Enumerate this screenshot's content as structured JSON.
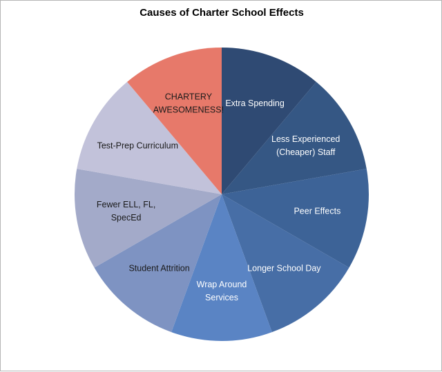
{
  "chart_data": {
    "type": "pie",
    "title": "Causes of Charter School Effects",
    "slices": [
      {
        "label": "Extra Spending",
        "value": 1,
        "color": "#2f4a73",
        "text_color": "#ffffff"
      },
      {
        "label": "Less Experienced (Cheaper) Staff",
        "value": 1,
        "color": "#355784",
        "text_color": "#ffffff"
      },
      {
        "label": "Peer Effects",
        "value": 1,
        "color": "#3d6397",
        "text_color": "#ffffff"
      },
      {
        "label": "Longer School Day",
        "value": 1,
        "color": "#476ea6",
        "text_color": "#ffffff"
      },
      {
        "label": "Wrap Around Services",
        "value": 1,
        "color": "#5a84c4",
        "text_color": "#ffffff"
      },
      {
        "label": "Student Attrition",
        "value": 1,
        "color": "#7e93c2",
        "text_color": "#1a1a1a"
      },
      {
        "label": "Fewer ELL, FL, SpecEd",
        "value": 1,
        "color": "#a3aac9",
        "text_color": "#1a1a1a"
      },
      {
        "label": "Test-Prep Curriculum",
        "value": 1,
        "color": "#c2c2da",
        "text_color": "#1a1a1a"
      },
      {
        "label": "CHARTERY AWESOMENESS!",
        "value": 1,
        "color": "#e7796a",
        "text_color": "#1a1a1a"
      }
    ],
    "label_lines": [
      [
        "Extra Spending"
      ],
      [
        "Less Experienced",
        "(Cheaper) Staff"
      ],
      [
        "Peer Effects"
      ],
      [
        "Longer School Day"
      ],
      [
        "Wrap Around",
        "Services"
      ],
      [
        "Student Attrition"
      ],
      [
        "Fewer ELL, FL,",
        "SpecEd"
      ],
      [
        "Test-Prep Curriculum"
      ],
      [
        "CHARTERY",
        "AWESOMENESS!"
      ]
    ],
    "start_angle_deg": 0,
    "direction": "clockwise",
    "legend": "none"
  }
}
